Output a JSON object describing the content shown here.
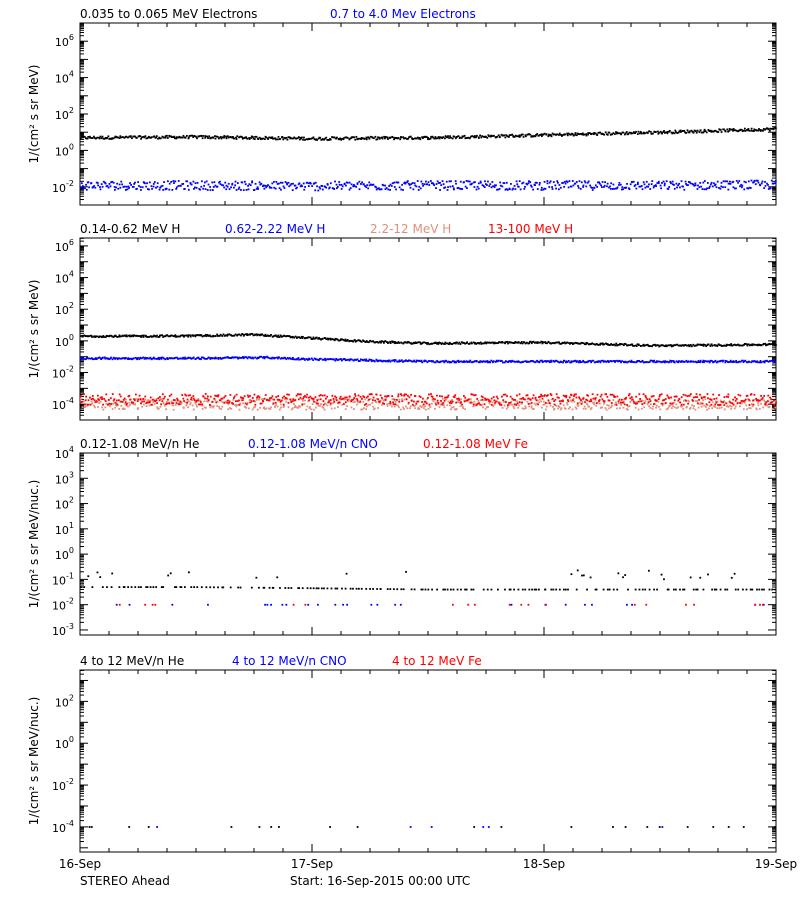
{
  "x_axis": {
    "ticks": [
      "16-Sep",
      "17-Sep",
      "18-Sep",
      "19-Sep"
    ],
    "range_days": [
      0,
      3
    ]
  },
  "footer": {
    "spacecraft": "STEREO Ahead",
    "start": "Start: 16-Sep-2015 00:00 UTC"
  },
  "colors": {
    "black": "#000000",
    "blue": "#0000ff",
    "salmon": "#e0907a",
    "red": "#ff0000"
  },
  "chart_data": [
    {
      "type": "scatter",
      "yscale": "log",
      "ylim": [
        -3,
        7
      ],
      "ylabel": "1/(cm² s sr MeV)",
      "yticks": [
        {
          "label": "10",
          "sup": "6",
          "exp": 6
        },
        {
          "label": "10",
          "sup": "4",
          "exp": 4
        },
        {
          "label": "10",
          "sup": "2",
          "exp": 2
        },
        {
          "label": "10",
          "sup": "0",
          "exp": 0
        },
        {
          "label": "10",
          "sup": "-2",
          "exp": -2
        }
      ],
      "series": [
        {
          "name": "0.035 to 0.065 MeV Electrons",
          "color": "#000000",
          "x": [
            0,
            0.5,
            1,
            1.5,
            2,
            2.5,
            3
          ],
          "y": [
            5,
            5.5,
            4.5,
            5,
            7,
            10,
            15
          ]
        },
        {
          "name": "0.7 to 4.0 Mev Electrons",
          "color": "#0000ff",
          "x": [
            0,
            0.5,
            1,
            1.5,
            2,
            2.5,
            3
          ],
          "y": [
            0.012,
            0.012,
            0.011,
            0.012,
            0.012,
            0.012,
            0.013
          ]
        }
      ]
    },
    {
      "type": "scatter",
      "yscale": "log",
      "ylim": [
        -5,
        6.5
      ],
      "ylabel": "1/(cm² s sr MeV)",
      "yticks": [
        {
          "label": "10",
          "sup": "6",
          "exp": 6
        },
        {
          "label": "10",
          "sup": "4",
          "exp": 4
        },
        {
          "label": "10",
          "sup": "2",
          "exp": 2
        },
        {
          "label": "10",
          "sup": "0",
          "exp": 0
        },
        {
          "label": "10",
          "sup": "-2",
          "exp": -2
        },
        {
          "label": "10",
          "sup": "-4",
          "exp": -4
        }
      ],
      "series": [
        {
          "name": "0.14-0.62 MeV H",
          "color": "#000000",
          "x": [
            0,
            0.25,
            0.5,
            0.75,
            1,
            1.25,
            1.5,
            2,
            2.5,
            3
          ],
          "y": [
            2,
            2,
            2.1,
            2.5,
            1.5,
            0.9,
            0.7,
            0.8,
            0.5,
            0.6
          ]
        },
        {
          "name": "0.62-2.22 MeV H",
          "color": "#0000ff",
          "x": [
            0,
            0.5,
            0.8,
            1,
            1.5,
            2,
            2.5,
            3
          ],
          "y": [
            0.08,
            0.08,
            0.09,
            0.07,
            0.05,
            0.05,
            0.05,
            0.05
          ]
        },
        {
          "name": "2.2-12 MeV H",
          "color": "#e0907a",
          "x": [
            0,
            1,
            2,
            3
          ],
          "y": [
            0.0001,
            0.0001,
            0.0001,
            0.0001
          ]
        },
        {
          "name": "13-100 MeV H",
          "color": "#ff0000",
          "x": [
            0,
            1,
            2,
            3
          ],
          "y": [
            0.0002,
            0.0002,
            0.0002,
            0.0002
          ]
        }
      ]
    },
    {
      "type": "scatter",
      "yscale": "log",
      "ylim": [
        -3.2,
        4
      ],
      "ylabel": "1/(cm² s sr MeV/nuc.)",
      "yticks": [
        {
          "label": "10",
          "sup": "4",
          "exp": 4
        },
        {
          "label": "10",
          "sup": "3",
          "exp": 3
        },
        {
          "label": "10",
          "sup": "2",
          "exp": 2
        },
        {
          "label": "10",
          "sup": "1",
          "exp": 1
        },
        {
          "label": "10",
          "sup": "0",
          "exp": 0
        },
        {
          "label": "10",
          "sup": "-1",
          "exp": -1
        },
        {
          "label": "10",
          "sup": "-2",
          "exp": -2
        },
        {
          "label": "10",
          "sup": "-3",
          "exp": -3
        }
      ],
      "series": [
        {
          "name": "0.12-1.08 MeV/n He",
          "color": "#000000",
          "x": [
            0,
            0.5,
            1,
            1.5,
            2,
            2.5,
            3
          ],
          "y": [
            0.05,
            0.05,
            0.045,
            0.04,
            0.04,
            0.04,
            0.04
          ]
        },
        {
          "name": "0.12-1.08 MeV/n CNO",
          "color": "#0000ff",
          "x": [
            0,
            1,
            2,
            3
          ],
          "y": [
            0.01,
            0.01,
            0.01,
            0.01
          ]
        },
        {
          "name": "0.12-1.08 MeV Fe",
          "color": "#ff0000",
          "x": [
            0,
            1,
            2,
            3
          ],
          "y": [
            0.01,
            0.01,
            0.01,
            0.01
          ]
        }
      ]
    },
    {
      "type": "scatter",
      "yscale": "log",
      "ylim": [
        -5.2,
        3.5
      ],
      "ylabel": "1/(cm² s sr MeV/nuc.)",
      "yticks": [
        {
          "label": "10",
          "sup": "2",
          "exp": 2
        },
        {
          "label": "10",
          "sup": "0",
          "exp": 0
        },
        {
          "label": "10",
          "sup": "-2",
          "exp": -2
        },
        {
          "label": "10",
          "sup": "-4",
          "exp": -4
        }
      ],
      "series": [
        {
          "name": "4 to 12 MeV/n He",
          "color": "#000000",
          "x": [
            0,
            1,
            2,
            3
          ],
          "y": [
            0.0001,
            0.0001,
            0.0001,
            0.0001
          ]
        },
        {
          "name": "4 to 12 MeV/n CNO",
          "color": "#0000ff",
          "x": [
            0,
            1,
            2,
            3
          ],
          "y": [
            0.0001,
            0.0001,
            0.0001,
            0.0001
          ]
        },
        {
          "name": "4 to 12 MeV Fe",
          "color": "#ff0000",
          "x": [],
          "y": []
        }
      ]
    }
  ]
}
